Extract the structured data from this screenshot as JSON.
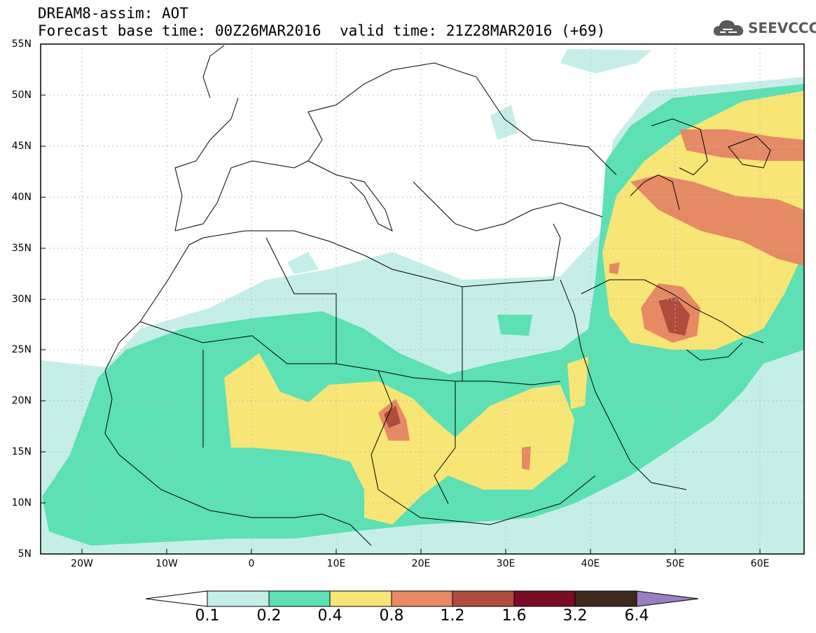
{
  "header": {
    "title": "DREAM8-assim: AOT",
    "base_time": "Forecast base time: 00Z26MAR2016",
    "valid_time": "valid time: 21Z28MAR2016 (+69)"
  },
  "logo": {
    "text": "SEEVCCC",
    "icon": "cloud-icon"
  },
  "map": {
    "variable": "AOT",
    "lat_range": [
      5,
      55
    ],
    "lon_range": [
      -25,
      65
    ],
    "lat_labels": [
      "55N",
      "50N",
      "45N",
      "40N",
      "35N",
      "30N",
      "25N",
      "20N",
      "15N",
      "10N",
      "5N"
    ],
    "lon_labels": [
      "20W",
      "10W",
      "0",
      "10E",
      "20E",
      "30E",
      "40E",
      "50E",
      "60E"
    ]
  },
  "colorbar": {
    "labels": [
      "0.1",
      "0.2",
      "0.4",
      "0.8",
      "1.2",
      "1.6",
      "3.2",
      "6.4"
    ],
    "colors": [
      "#c5eee8",
      "#5ce0b4",
      "#f7e576",
      "#e58a64",
      "#ae4c3e",
      "#7a0c26",
      "#3e2a1c",
      "#9b7ec2"
    ],
    "below_color": "#ffffff"
  }
}
